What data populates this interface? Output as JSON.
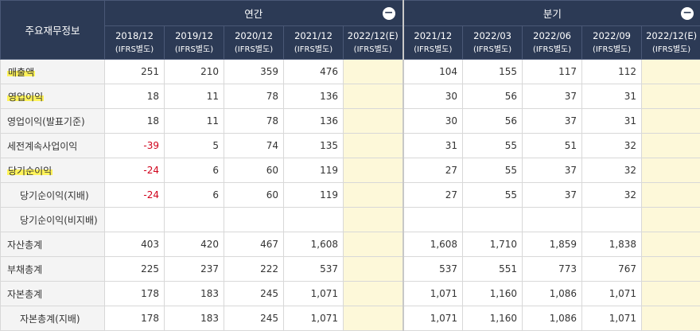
{
  "header": {
    "label_col": "주요재무정보",
    "annual_title": "연간",
    "quarter_title": "분기",
    "collapse_icon": "−",
    "annual_periods": [
      {
        "period": "2018/12",
        "basis": "(IFRS별도)",
        "estimate": false
      },
      {
        "period": "2019/12",
        "basis": "(IFRS별도)",
        "estimate": false
      },
      {
        "period": "2020/12",
        "basis": "(IFRS별도)",
        "estimate": false
      },
      {
        "period": "2021/12",
        "basis": "(IFRS별도)",
        "estimate": false
      },
      {
        "period": "2022/12(E)",
        "basis": "(IFRS별도)",
        "estimate": true
      }
    ],
    "quarter_periods": [
      {
        "period": "2021/12",
        "basis": "(IFRS별도)",
        "estimate": false
      },
      {
        "period": "2022/03",
        "basis": "(IFRS별도)",
        "estimate": false
      },
      {
        "period": "2022/06",
        "basis": "(IFRS별도)",
        "estimate": false
      },
      {
        "period": "2022/09",
        "basis": "(IFRS별도)",
        "estimate": false
      },
      {
        "period": "2022/12(E)",
        "basis": "(IFRS별도)",
        "estimate": true
      }
    ]
  },
  "colors": {
    "header_bg": "#2c3a55",
    "estimate_bg": "#fdf8d9",
    "negative": "#d0021b",
    "highlight": "#fff35a"
  },
  "rows": [
    {
      "label": "매출액",
      "highlight": true,
      "indent": false,
      "annual": [
        "251",
        "210",
        "359",
        "476",
        ""
      ],
      "quarter": [
        "104",
        "155",
        "117",
        "112",
        ""
      ]
    },
    {
      "label": "영업이익",
      "highlight": true,
      "indent": false,
      "annual": [
        "18",
        "11",
        "78",
        "136",
        ""
      ],
      "quarter": [
        "30",
        "56",
        "37",
        "31",
        ""
      ]
    },
    {
      "label": "영업이익(발표기준)",
      "highlight": false,
      "indent": false,
      "annual": [
        "18",
        "11",
        "78",
        "136",
        ""
      ],
      "quarter": [
        "30",
        "56",
        "37",
        "31",
        ""
      ]
    },
    {
      "label": "세전계속사업이익",
      "highlight": false,
      "indent": false,
      "annual": [
        "-39",
        "5",
        "74",
        "135",
        ""
      ],
      "quarter": [
        "31",
        "55",
        "51",
        "32",
        ""
      ]
    },
    {
      "label": "당기순이익",
      "highlight": true,
      "indent": false,
      "annual": [
        "-24",
        "6",
        "60",
        "119",
        ""
      ],
      "quarter": [
        "27",
        "55",
        "37",
        "32",
        ""
      ]
    },
    {
      "label": "당기순이익(지배)",
      "highlight": false,
      "indent": true,
      "annual": [
        "-24",
        "6",
        "60",
        "119",
        ""
      ],
      "quarter": [
        "27",
        "55",
        "37",
        "32",
        ""
      ]
    },
    {
      "label": "당기순이익(비지배)",
      "highlight": false,
      "indent": true,
      "annual": [
        "",
        "",
        "",
        "",
        ""
      ],
      "quarter": [
        "",
        "",
        "",
        "",
        ""
      ]
    },
    {
      "label": "자산총계",
      "highlight": false,
      "indent": false,
      "annual": [
        "403",
        "420",
        "467",
        "1,608",
        ""
      ],
      "quarter": [
        "1,608",
        "1,710",
        "1,859",
        "1,838",
        ""
      ]
    },
    {
      "label": "부채총계",
      "highlight": false,
      "indent": false,
      "annual": [
        "225",
        "237",
        "222",
        "537",
        ""
      ],
      "quarter": [
        "537",
        "551",
        "773",
        "767",
        ""
      ]
    },
    {
      "label": "자본총계",
      "highlight": false,
      "indent": false,
      "annual": [
        "178",
        "183",
        "245",
        "1,071",
        ""
      ],
      "quarter": [
        "1,071",
        "1,160",
        "1,086",
        "1,071",
        ""
      ]
    },
    {
      "label": "자본총계(지배)",
      "highlight": false,
      "indent": true,
      "annual": [
        "178",
        "183",
        "245",
        "1,071",
        ""
      ],
      "quarter": [
        "1,071",
        "1,160",
        "1,086",
        "1,071",
        ""
      ]
    }
  ]
}
